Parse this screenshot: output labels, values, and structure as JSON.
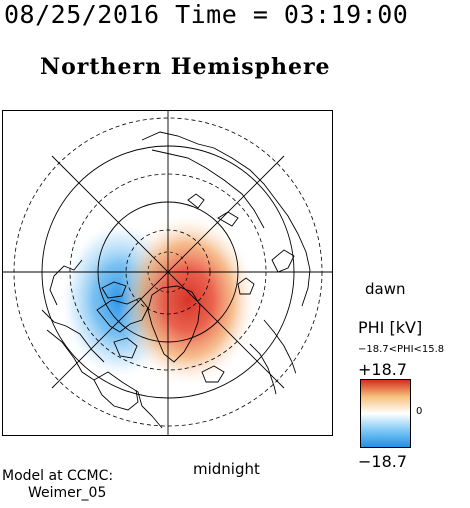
{
  "header": {
    "timestamp": "08/25/2016 Time = 03:19:00",
    "title": "Northern Hemisphere"
  },
  "map": {
    "orientation_labels": {
      "right": "dawn",
      "bottom": "midnight"
    },
    "potential_cells": [
      {
        "sign": "positive",
        "color": "#d42a1e"
      },
      {
        "sign": "negative",
        "color": "#1e8ee6"
      }
    ]
  },
  "colorbar": {
    "quantity": "PHI [kV]",
    "range_text": "−18.7<PHI<15.8",
    "max_label": "+18.7",
    "min_label": "−18.7",
    "zero_label": "0",
    "colors": [
      "#1e8ee6",
      "#7fc8f5",
      "#ffffff",
      "#f6c07a",
      "#d42a1e"
    ]
  },
  "footer": {
    "model_label": "Model at CCMC:",
    "model_name": "Weimer_05"
  }
}
